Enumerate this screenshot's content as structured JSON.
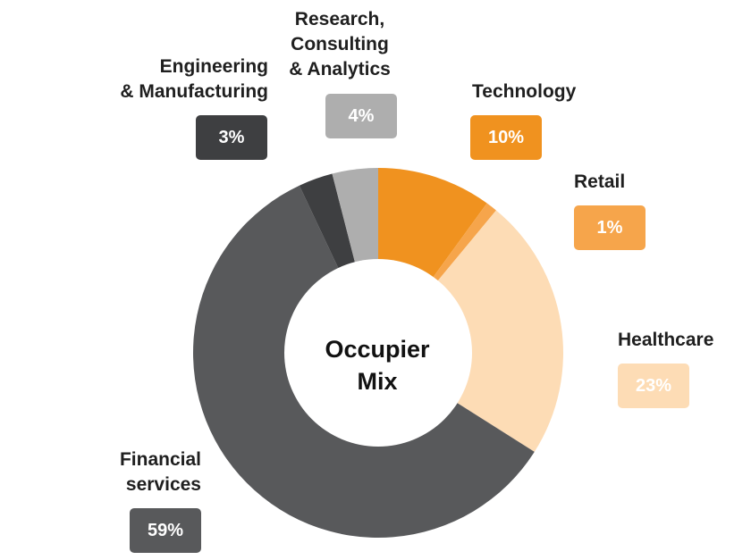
{
  "chart_data": {
    "type": "pie",
    "title": "",
    "center_label": "Occupier\nMix",
    "categories": [
      "Technology",
      "Retail",
      "Healthcare",
      "Financial\nservices",
      "Engineering\n& Manufacturing",
      "Research,\nConsulting\n& Analytics"
    ],
    "values": [
      10,
      1,
      23,
      59,
      3,
      4
    ],
    "value_labels": [
      "10%",
      "1%",
      "23%",
      "59%",
      "3%",
      "4%"
    ],
    "colors": [
      "#f0921f",
      "#f6a54b",
      "#fddcb5",
      "#58595b",
      "#3e3f41",
      "#aeaeae"
    ],
    "badge_text_colors": [
      "#ffffff",
      "#ffffff",
      "#ffffff",
      "#ffffff",
      "#ffffff",
      "#ffffff"
    ]
  }
}
